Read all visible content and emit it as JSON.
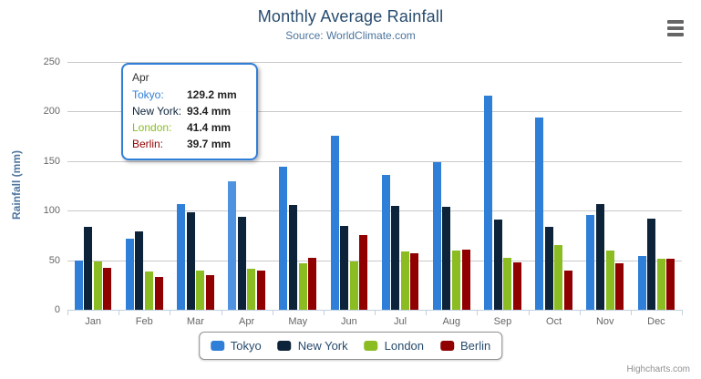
{
  "title": "Monthly Average Rainfall",
  "subtitle": "Source: WorldClimate.com",
  "credits": "Highcharts.com",
  "export_menu": {
    "icon": "hamburger-icon"
  },
  "axis": {
    "y_title": "Rainfall (mm)",
    "y_tick_labels": [
      "0",
      "50",
      "100",
      "150",
      "200",
      "250"
    ]
  },
  "chart_data": {
    "type": "bar",
    "title": "Monthly Average Rainfall",
    "subtitle": "Source: WorldClimate.com",
    "xlabel": "",
    "ylabel": "Rainfall (mm)",
    "ylim": [
      0,
      250
    ],
    "ytick_interval": 50,
    "grid": true,
    "legend_position": "bottom",
    "categories": [
      "Jan",
      "Feb",
      "Mar",
      "Apr",
      "May",
      "Jun",
      "Jul",
      "Aug",
      "Sep",
      "Oct",
      "Nov",
      "Dec"
    ],
    "series": [
      {
        "name": "Tokyo",
        "color": "#2f7ed8",
        "values": [
          49.9,
          71.5,
          106.4,
          129.2,
          144.0,
          176.0,
          135.6,
          148.5,
          216.4,
          194.1,
          95.6,
          54.4
        ]
      },
      {
        "name": "New York",
        "color": "#0d233a",
        "values": [
          83.6,
          78.8,
          98.5,
          93.4,
          106.0,
          84.5,
          105.0,
          104.3,
          91.2,
          83.5,
          106.6,
          92.3
        ]
      },
      {
        "name": "London",
        "color": "#8bbc21",
        "values": [
          48.9,
          38.8,
          39.3,
          41.4,
          47.0,
          48.3,
          59.0,
          59.6,
          52.4,
          65.2,
          59.3,
          51.2
        ]
      },
      {
        "name": "Berlin",
        "color": "#910000",
        "values": [
          42.4,
          33.2,
          34.5,
          39.7,
          52.6,
          75.5,
          57.4,
          60.4,
          47.6,
          39.1,
          46.8,
          51.1
        ]
      }
    ],
    "hover": {
      "series": "Tokyo",
      "category": "Apr",
      "highlight_color": "#4e92e0"
    }
  },
  "tooltip": {
    "header": "Apr",
    "border_color": "#2f7ed8",
    "rows": [
      {
        "label": "Tokyo:",
        "value": "129.2 mm",
        "color": "#2f7ed8"
      },
      {
        "label": "New York:",
        "value": "93.4 mm",
        "color": "#0d233a"
      },
      {
        "label": "London:",
        "value": "41.4 mm",
        "color": "#8bbc21"
      },
      {
        "label": "Berlin:",
        "value": "39.7 mm",
        "color": "#910000"
      }
    ]
  },
  "palette": {
    "title_color": "#274b6d",
    "subtitle_color": "#4d759e",
    "axis_label_color": "#666666",
    "gridline_color": "#c9c9c9",
    "axis_line_color": "#c0d0e0",
    "legend_text_color": "#274b6d",
    "credits_color": "#909090"
  }
}
